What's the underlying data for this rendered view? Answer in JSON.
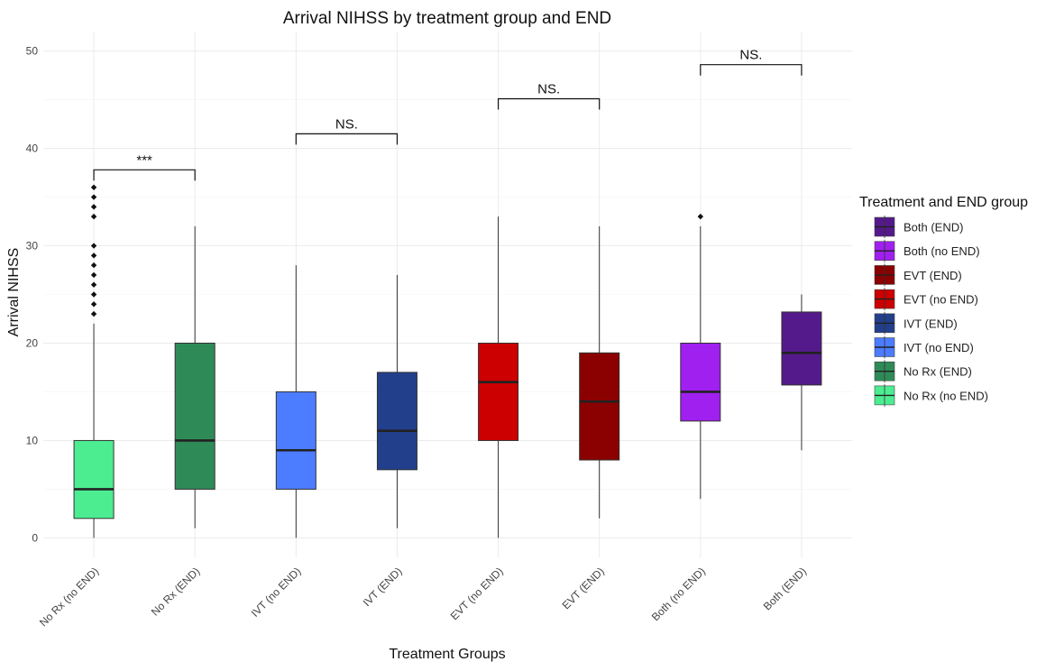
{
  "chart_data": {
    "type": "box",
    "title": "Arrival NIHSS by treatment group and END",
    "xlabel": "Treatment Groups",
    "ylabel": "Arrival NIHSS",
    "ylim": [
      -2,
      52
    ],
    "yticks": [
      0,
      10,
      20,
      30,
      40,
      50
    ],
    "grid": true,
    "groups": [
      {
        "label": "No Rx (no END)",
        "color": "#4ced91",
        "min": 0,
        "q1": 2,
        "median": 5,
        "q3": 10,
        "max": 22,
        "outliers": [
          23,
          24,
          25,
          26,
          27,
          28,
          29,
          30,
          33,
          34,
          35,
          36
        ]
      },
      {
        "label": "No Rx (END)",
        "color": "#2e8b57",
        "min": 1,
        "q1": 5,
        "median": 10,
        "q3": 20,
        "max": 32,
        "outliers": []
      },
      {
        "label": "IVT (no END)",
        "color": "#4c7cff",
        "min": 0,
        "q1": 5,
        "median": 9,
        "q3": 15,
        "max": 28,
        "outliers": []
      },
      {
        "label": "IVT (END)",
        "color": "#223f8c",
        "min": 1,
        "q1": 7,
        "median": 11,
        "q3": 17,
        "max": 27,
        "outliers": []
      },
      {
        "label": "EVT (no END)",
        "color": "#cc0000",
        "min": 0,
        "q1": 10,
        "median": 16,
        "q3": 20,
        "max": 33,
        "outliers": []
      },
      {
        "label": "EVT (END)",
        "color": "#8b0000",
        "min": 2,
        "q1": 8,
        "median": 14,
        "q3": 19,
        "max": 32,
        "outliers": []
      },
      {
        "label": "Both (no END)",
        "color": "#a020f0",
        "min": 4,
        "q1": 12,
        "median": 15,
        "q3": 20,
        "max": 32,
        "outliers": [
          33
        ]
      },
      {
        "label": "Both (END)",
        "color": "#541a8b",
        "min": 9,
        "q1": 15.7,
        "median": 19,
        "q3": 23.2,
        "max": 25,
        "outliers": []
      }
    ],
    "significance": [
      {
        "from": 0,
        "to": 1,
        "y": 37.8,
        "label": "***"
      },
      {
        "from": 2,
        "to": 3,
        "y": 41.5,
        "label": "NS."
      },
      {
        "from": 4,
        "to": 5,
        "y": 45.1,
        "label": "NS."
      },
      {
        "from": 6,
        "to": 7,
        "y": 48.6,
        "label": "NS."
      }
    ],
    "legend": {
      "title": "Treatment and END group",
      "position": "right",
      "items": [
        {
          "label": "Both (END)",
          "color": "#541a8b"
        },
        {
          "label": "Both (no END)",
          "color": "#a020f0"
        },
        {
          "label": "EVT (END)",
          "color": "#8b0000"
        },
        {
          "label": "EVT (no END)",
          "color": "#cc0000"
        },
        {
          "label": "IVT (END)",
          "color": "#223f8c"
        },
        {
          "label": "IVT (no END)",
          "color": "#4c7cff"
        },
        {
          "label": "No Rx (END)",
          "color": "#2e8b57"
        },
        {
          "label": "No Rx (no END)",
          "color": "#4ced91"
        }
      ]
    }
  }
}
